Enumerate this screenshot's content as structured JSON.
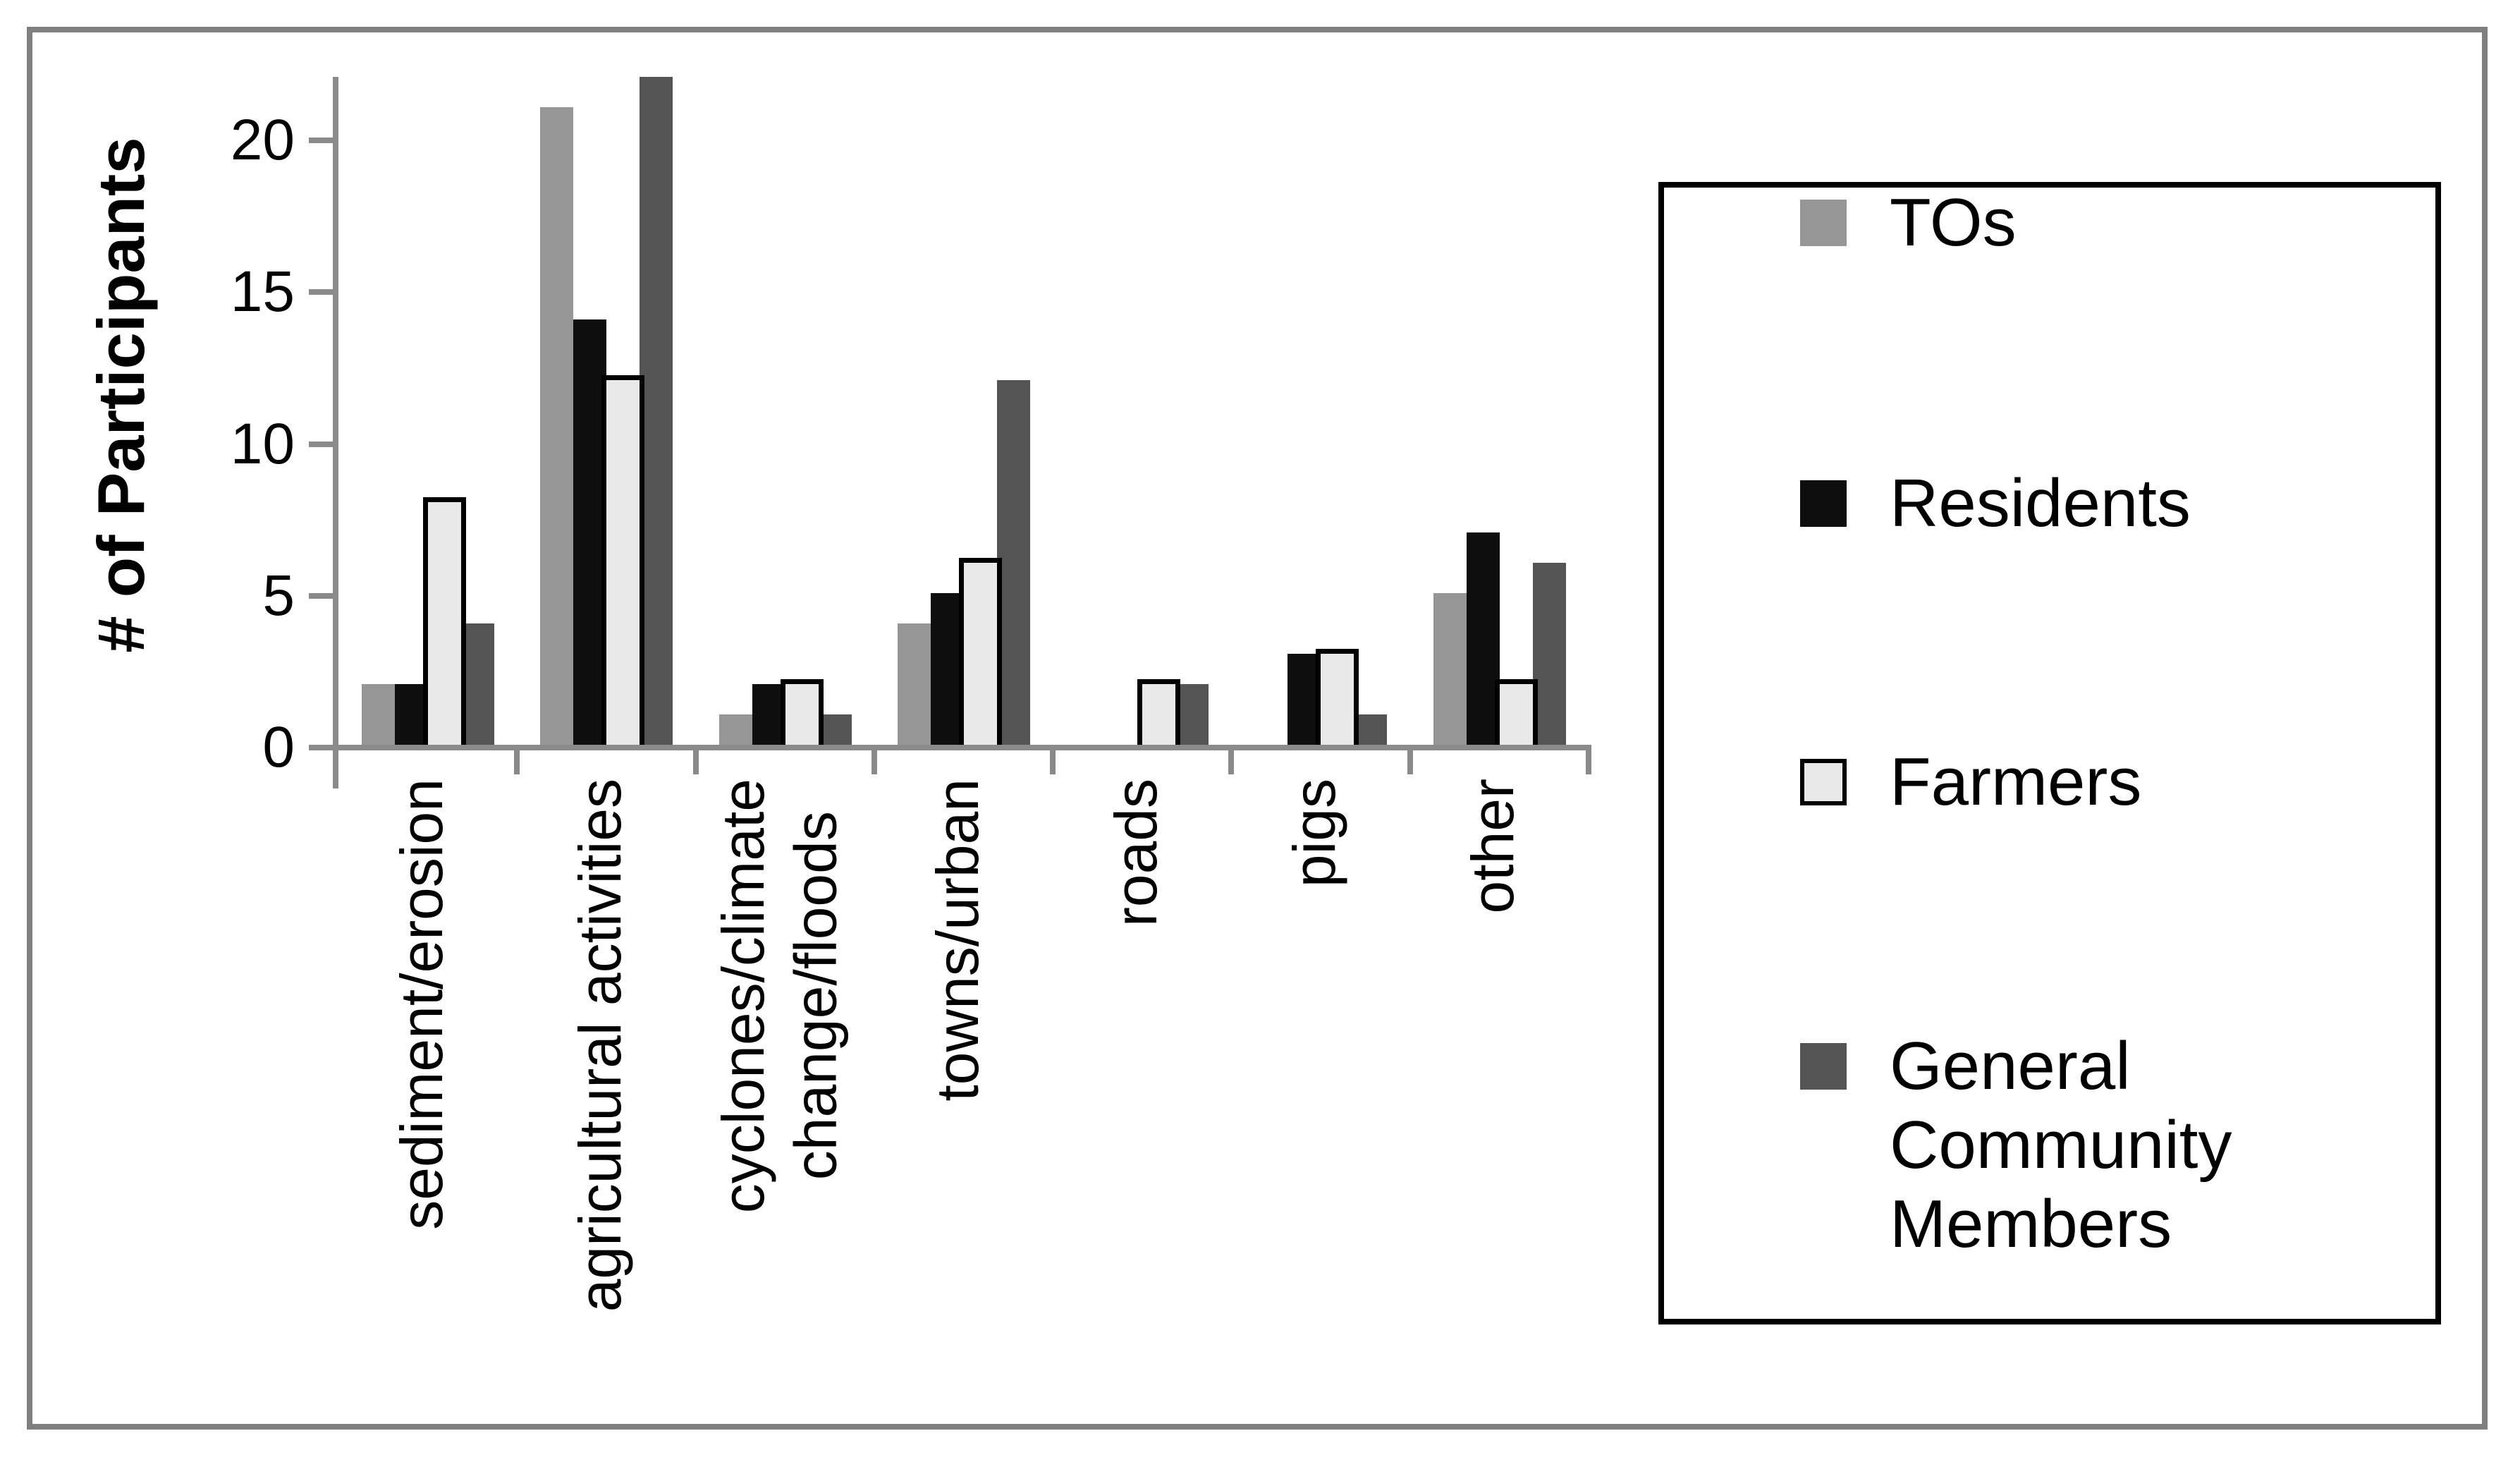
{
  "chart_data": {
    "type": "bar",
    "title": "",
    "xlabel": "",
    "ylabel": "# of Participants",
    "ylim": [
      0,
      22
    ],
    "yticks": [
      0,
      5,
      10,
      15,
      20
    ],
    "grid": false,
    "legend_position": "right",
    "categories": [
      "sediment/erosion",
      "agricultural activities",
      "cyclones/climate\nchange/floods",
      "towns/urban",
      "roads",
      "pigs",
      "other"
    ],
    "series": [
      {
        "name": "TOs",
        "color": "#969696",
        "outline": false,
        "values": [
          2,
          21,
          1,
          4,
          0,
          0,
          5
        ]
      },
      {
        "name": "Residents",
        "color": "#0e0e0e",
        "outline": false,
        "values": [
          2,
          14,
          2,
          5,
          0,
          3,
          7
        ]
      },
      {
        "name": "Farmers",
        "color": "#e9e9e9",
        "outline": true,
        "values": [
          8,
          12,
          2,
          6,
          2,
          3,
          2
        ]
      },
      {
        "name": "General Community Members",
        "color": "#545454",
        "outline": false,
        "values": [
          4,
          22,
          1,
          12,
          2,
          1,
          6
        ]
      }
    ]
  },
  "colors": {
    "axis": "#8a8a8a",
    "outer_border": "#7f7f7f",
    "legend_border": "#000000",
    "text": "#000000",
    "background": "#ffffff"
  }
}
